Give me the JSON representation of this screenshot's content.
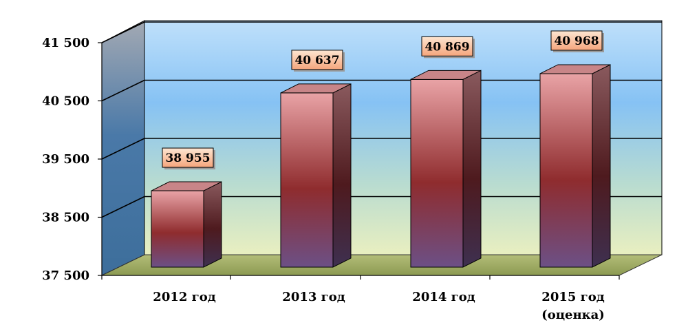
{
  "chart_data": {
    "type": "bar",
    "categories": [
      "2012 год",
      "2013 год",
      "2014 год",
      "2015 год (оценка)"
    ],
    "category_lines": [
      [
        "2012 год"
      ],
      [
        "2013 год"
      ],
      [
        "2014 год"
      ],
      [
        "2015 год",
        "(оценка)"
      ]
    ],
    "values": [
      38955,
      40637,
      40869,
      40968
    ],
    "data_labels": [
      "38 955",
      "40 637",
      "40 869",
      "40 968"
    ],
    "yticks": [
      37500,
      38500,
      39500,
      40500,
      41500
    ],
    "ytick_labels": [
      "37 500",
      "38 500",
      "39 500",
      "40 500",
      "41 500"
    ],
    "ylim": [
      37500,
      41500
    ],
    "grid": true,
    "style": "3d-column",
    "colors": {
      "bar_top": "#e8a0a4",
      "bar_mid": "#8c2a2c",
      "bar_bottom": "#6a4c80",
      "bar_side": "#5a1e26",
      "bar_cap": "#c98488",
      "wall_top": "#7ab8f0",
      "wall_bottom": "#e4ecbe",
      "side_wall_top": "#8a9aac",
      "side_wall_bottom": "#3e74a8",
      "floor": "#9aa862",
      "label_fill_top": "#fde2cc",
      "label_fill_bottom": "#f6a37a",
      "label_border": "#000000"
    }
  }
}
